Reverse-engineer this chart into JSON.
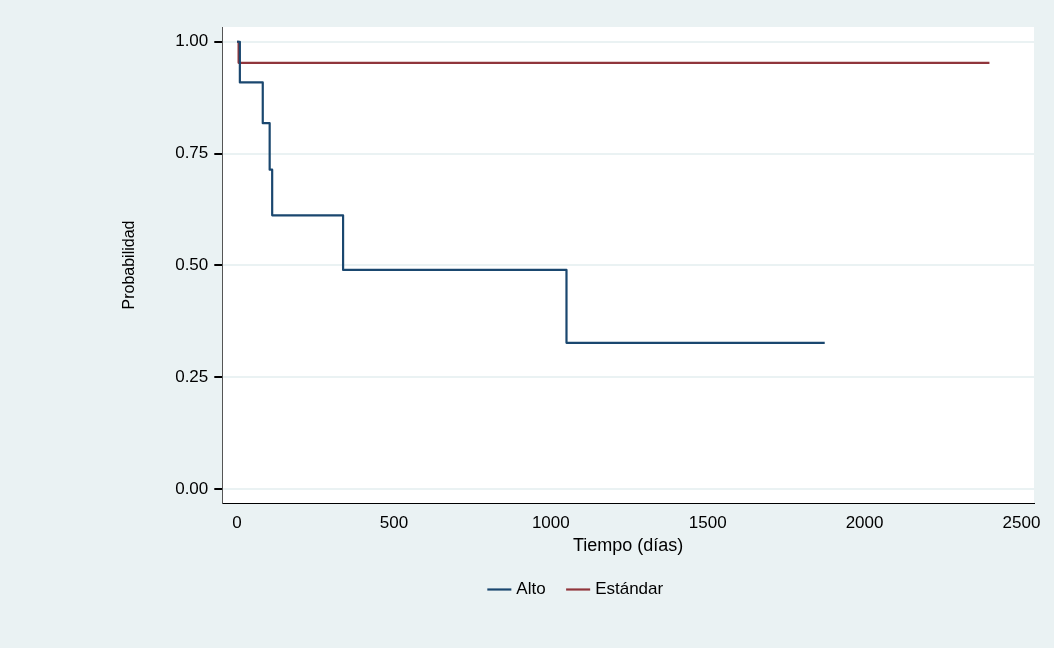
{
  "chart_data": {
    "type": "step",
    "xlabel": "Tiempo (días)",
    "ylabel": "Probabilidad",
    "xlim": [
      -47,
      2540
    ],
    "ylim": [
      -0.031,
      1.033
    ],
    "xticks": [
      0,
      500,
      1000,
      1500,
      2000,
      2500
    ],
    "yticks": [
      {
        "value": 0,
        "label": "0.00"
      },
      {
        "value": 0.25,
        "label": "0.25"
      },
      {
        "value": 0.5,
        "label": "0.50"
      },
      {
        "value": 0.75,
        "label": "0.75"
      },
      {
        "value": 1,
        "label": "1.00"
      }
    ],
    "grid": "y",
    "legend": "bottom",
    "series": [
      {
        "name": "Alto",
        "color": "#1a476f",
        "x": [
          0,
          9,
          82,
          104,
          112,
          338,
          1050,
          1873
        ],
        "values": [
          1,
          0.909,
          0.818,
          0.714,
          0.612,
          0.49,
          0.327,
          0.327
        ]
      },
      {
        "name": "Estándar",
        "color": "#90353b",
        "x": [
          0,
          5,
          2398
        ],
        "values": [
          1,
          0.953,
          0.953
        ]
      }
    ]
  }
}
